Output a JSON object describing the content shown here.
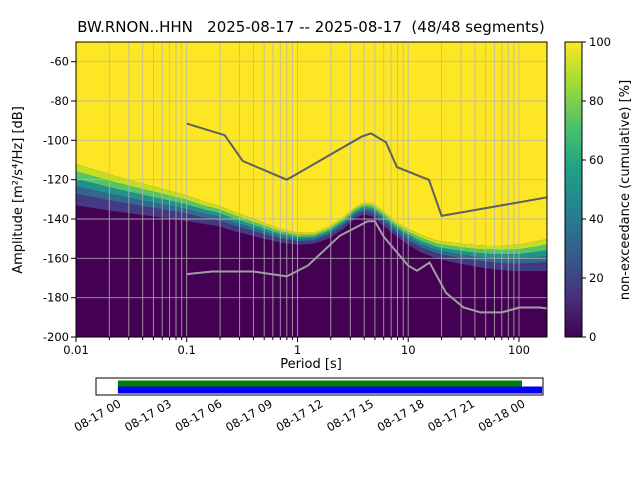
{
  "chart_data": {
    "type": "heatmap",
    "title": "BW.RNON..HHN   2025-08-17 -- 2025-08-17  (48/48 segments)",
    "xlabel": "Period [s]",
    "ylabel": "Amplitude [m²/s⁴/Hz] [dB]",
    "colorbar_label": "non-exceedance (cumulative) [%]",
    "x_scale": "log",
    "xlim": [
      0.01,
      179
    ],
    "ylim": [
      -200,
      -50
    ],
    "x_ticks": [
      0.01,
      0.1,
      1,
      10,
      100
    ],
    "x_tick_labels": [
      "0.01",
      "0.1",
      "1",
      "10",
      "100"
    ],
    "y_ticks": [
      -60,
      -80,
      -100,
      -120,
      -140,
      -160,
      -180,
      -200
    ],
    "colorbar_ticks": [
      0,
      20,
      40,
      60,
      80,
      100
    ],
    "grid": true,
    "colormap": {
      "name": "viridis",
      "stops": [
        [
          0,
          "#440154"
        ],
        [
          0.14,
          "#46327e"
        ],
        [
          0.28,
          "#365c8d"
        ],
        [
          0.42,
          "#277f8e"
        ],
        [
          0.57,
          "#1fa187"
        ],
        [
          0.71,
          "#4ac16d"
        ],
        [
          0.86,
          "#a0da39"
        ],
        [
          1,
          "#fde725"
        ]
      ],
      "bands": [
        {
          "f1": 1.0,
          "f2": 0.82,
          "color": "#c2df23"
        },
        {
          "f1": 0.82,
          "f2": 0.64,
          "color": "#54c568"
        },
        {
          "f1": 0.64,
          "f2": 0.46,
          "color": "#21918c"
        },
        {
          "f1": 0.46,
          "f2": 0.28,
          "color": "#31688e"
        },
        {
          "f1": 0.28,
          "f2": 0.0,
          "color": "#443983"
        }
      ]
    },
    "histogram_boundary": {
      "comment": "top_db = amplitude where cumulative reaches 100% (yellow above), bottom_db = where it reaches 0% (purple below)",
      "periods": [
        0.01,
        0.013,
        0.017,
        0.022,
        0.03,
        0.04,
        0.055,
        0.075,
        0.1,
        0.14,
        0.19,
        0.26,
        0.36,
        0.5,
        0.7,
        1.0,
        1.4,
        1.9,
        2.6,
        3.3,
        4.0,
        4.8,
        6.0,
        7.5,
        10,
        13,
        18,
        25,
        35,
        50,
        70,
        100,
        140,
        179
      ],
      "top_db": [
        -112,
        -114,
        -116,
        -118,
        -120,
        -122,
        -124,
        -126,
        -128,
        -131,
        -133,
        -136,
        -139,
        -142,
        -145,
        -147,
        -147,
        -144,
        -139,
        -134,
        -131.5,
        -132,
        -136,
        -141,
        -145,
        -148,
        -151,
        -152,
        -153,
        -153.5,
        -153.5,
        -153,
        -151.5,
        -150
      ],
      "bottom_db": [
        -133,
        -134,
        -135,
        -136,
        -137,
        -138,
        -139,
        -140,
        -141,
        -142.5,
        -143.5,
        -146,
        -148,
        -150,
        -152,
        -153,
        -152.5,
        -150,
        -145,
        -140,
        -137.5,
        -139,
        -143.5,
        -148,
        -153,
        -157,
        -160,
        -162,
        -163.5,
        -165,
        -166,
        -166.5,
        -166.5,
        -166.5
      ]
    },
    "noise_models": {
      "nhnm": {
        "name": "NHNM",
        "color": "#5f5f5f",
        "periods": [
          0.1,
          0.22,
          0.32,
          0.8,
          3.8,
          4.6,
          6.3,
          7.9,
          15.4,
          20,
          179
        ],
        "db": [
          -91.5,
          -97.4,
          -110.5,
          -120.0,
          -98.1,
          -96.5,
          -101.0,
          -113.6,
          -120.1,
          -138.4,
          -129.0
        ]
      },
      "nlnm": {
        "name": "NLNM",
        "color": "#a0a0a0",
        "periods": [
          0.1,
          0.17,
          0.4,
          0.8,
          1.24,
          2.4,
          4.3,
          5.0,
          6.0,
          10.0,
          12.0,
          15.6,
          21.9,
          31.6,
          45,
          70,
          101,
          154,
          179
        ],
        "db": [
          -168.0,
          -166.7,
          -166.7,
          -169.2,
          -163.7,
          -148.6,
          -141.1,
          -141.1,
          -149.0,
          -163.7,
          -166.3,
          -162.1,
          -177.5,
          -185.0,
          -187.5,
          -187.5,
          -185.0,
          -185.0,
          -185.5
        ]
      }
    },
    "coverage": {
      "labels": [
        "08-17 00",
        "08-17 03",
        "08-17 06",
        "08-17 09",
        "08-17 12",
        "08-17 15",
        "08-17 18",
        "08-17 21",
        "08-18 00"
      ],
      "green": [
        0.049,
        0.953
      ],
      "blue": [
        0.049,
        0.998
      ],
      "green_color": "#008000",
      "blue_color": "#0000ff"
    }
  }
}
